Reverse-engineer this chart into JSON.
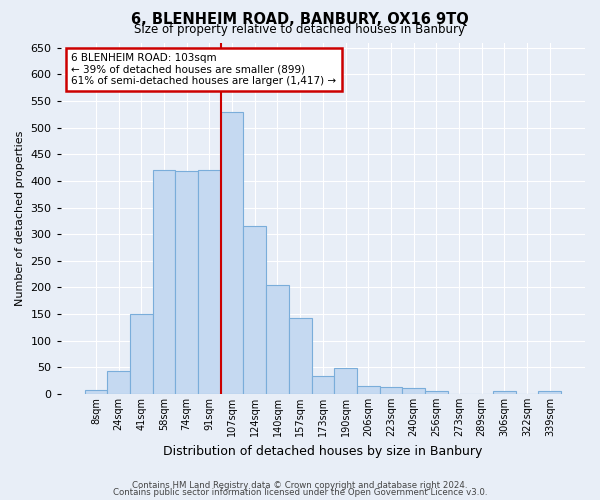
{
  "title": "6, BLENHEIM ROAD, BANBURY, OX16 9TQ",
  "subtitle": "Size of property relative to detached houses in Banbury",
  "xlabel": "Distribution of detached houses by size in Banbury",
  "ylabel": "Number of detached properties",
  "bar_labels": [
    "8sqm",
    "24sqm",
    "41sqm",
    "58sqm",
    "74sqm",
    "91sqm",
    "107sqm",
    "124sqm",
    "140sqm",
    "157sqm",
    "173sqm",
    "190sqm",
    "206sqm",
    "223sqm",
    "240sqm",
    "256sqm",
    "273sqm",
    "289sqm",
    "306sqm",
    "322sqm",
    "339sqm"
  ],
  "bar_values": [
    8,
    44,
    150,
    420,
    418,
    420,
    530,
    315,
    205,
    143,
    33,
    49,
    15,
    13,
    12,
    6,
    0,
    0,
    5,
    0,
    6
  ],
  "bar_color": "#c5d9f1",
  "bar_edge_color": "#7aadda",
  "ylim": [
    0,
    660
  ],
  "yticks": [
    0,
    50,
    100,
    150,
    200,
    250,
    300,
    350,
    400,
    450,
    500,
    550,
    600,
    650
  ],
  "vline_index": 6,
  "vline_color": "#cc0000",
  "annotation_title": "6 BLENHEIM ROAD: 103sqm",
  "annotation_line1": "← 39% of detached houses are smaller (899)",
  "annotation_line2": "61% of semi-detached houses are larger (1,417) →",
  "annotation_box_facecolor": "#ffffff",
  "annotation_box_edgecolor": "#cc0000",
  "footer_line1": "Contains HM Land Registry data © Crown copyright and database right 2024.",
  "footer_line2": "Contains public sector information licensed under the Open Government Licence v3.0.",
  "bg_color": "#e8eef7",
  "plot_bg_color": "#e8eef7",
  "grid_color": "#ffffff"
}
